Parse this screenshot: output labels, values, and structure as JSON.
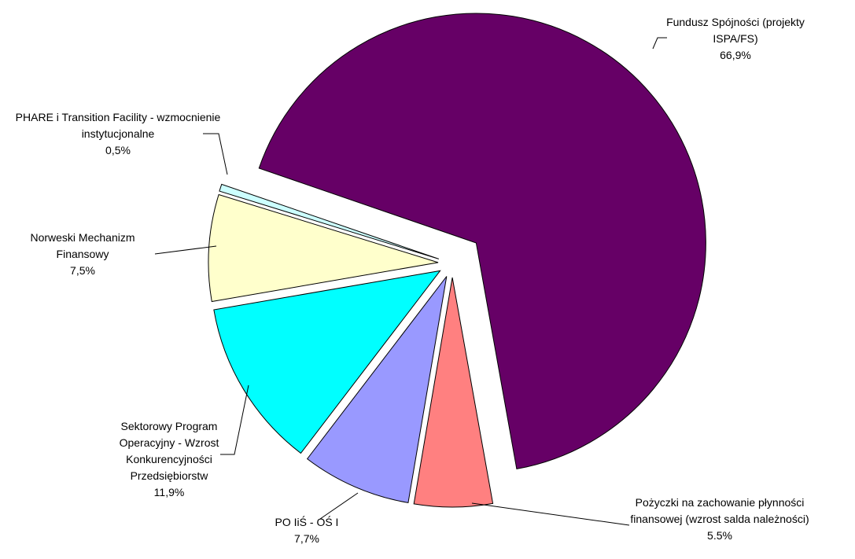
{
  "chart_data": {
    "type": "pie",
    "categories": [
      "Fundusz Spójności (projekty ISPA/FS)",
      "Pożyczki na zachowanie płynności finansowej (wzrost salda należności)",
      "PO IiŚ - OŚ I",
      "Sektorowy Program Operacyjny - Wzrost Konkurencyjności Przedsiębiorstw",
      "Norweski Mechanizm Finansowy",
      "PHARE i Transition Facility - wzmocnienie instytucjonalne"
    ],
    "values": [
      66.9,
      5.5,
      7.7,
      11.9,
      7.5,
      0.5
    ],
    "value_labels": [
      "66,9%",
      "5.5%",
      "7,7%",
      "11,9%",
      "7,5%",
      "0,5%"
    ],
    "colors": [
      "#660066",
      "#ff8080",
      "#9999ff",
      "#00ffff",
      "#ffffcc",
      "#ccffff"
    ]
  }
}
